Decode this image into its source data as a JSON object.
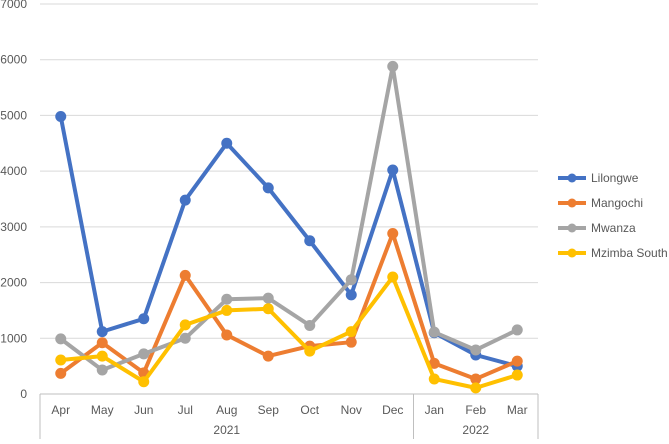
{
  "chart_data": {
    "type": "line",
    "title": "",
    "xlabel": "",
    "ylabel": "",
    "ylim": [
      0,
      7000
    ],
    "yticks": [
      0,
      1000,
      2000,
      3000,
      4000,
      5000,
      6000,
      7000
    ],
    "yticks_labels": [
      "0",
      "1000",
      "2000",
      "3000",
      "4000",
      "5000",
      "6000",
      "7000"
    ],
    "grid": true,
    "legend_position": "right",
    "categories": [
      "Apr",
      "May",
      "Jun",
      "Jul",
      "Aug",
      "Sep",
      "Oct",
      "Nov",
      "Dec",
      "Jan",
      "Feb",
      "Mar"
    ],
    "category_groups": [
      {
        "label": "2021",
        "count": 9
      },
      {
        "label": "2022",
        "count": 3
      }
    ],
    "series": [
      {
        "name": "Lilongwe",
        "color": "#4472C4",
        "values": [
          4980,
          1120,
          1350,
          3480,
          4500,
          3700,
          2750,
          1780,
          4020,
          1100,
          700,
          500
        ]
      },
      {
        "name": "Mangochi",
        "color": "#ED7D31",
        "values": [
          370,
          920,
          380,
          2130,
          1060,
          680,
          860,
          930,
          2880,
          550,
          270,
          590
        ]
      },
      {
        "name": "Mwanza",
        "color": "#A5A5A5",
        "values": [
          990,
          430,
          720,
          1000,
          1700,
          1720,
          1230,
          2050,
          5880,
          1110,
          790,
          1150
        ]
      },
      {
        "name": "Mzimba South",
        "color": "#FFC000",
        "values": [
          610,
          680,
          220,
          1240,
          1500,
          1530,
          770,
          1120,
          2100,
          270,
          110,
          340
        ]
      }
    ]
  }
}
